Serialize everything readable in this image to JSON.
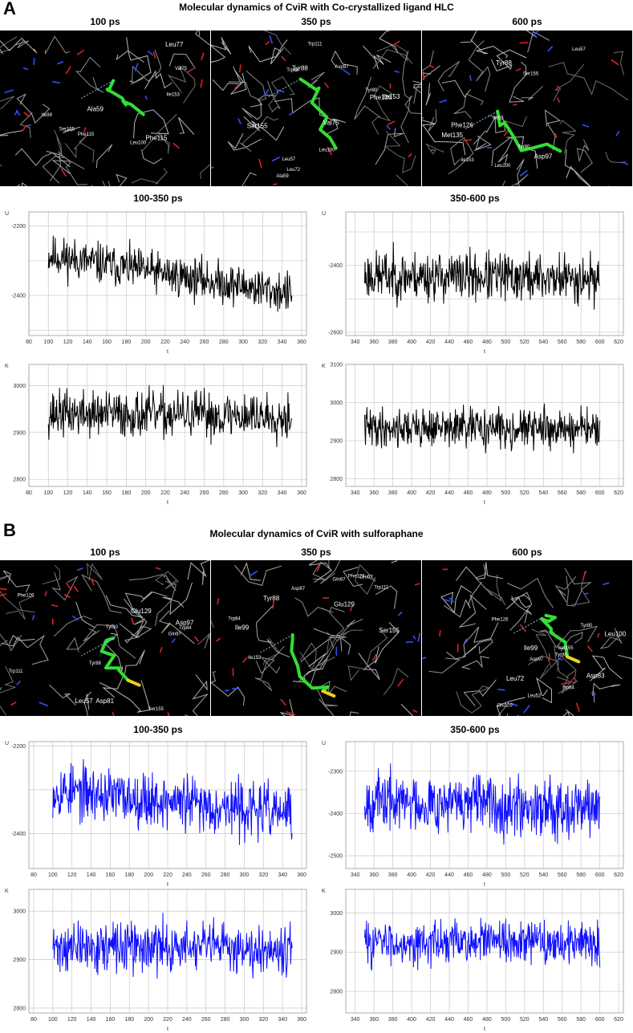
{
  "panels": [
    {
      "letter": "A",
      "title": "Molecular dynamics of CviR with Co-crystallized ligand HLC",
      "color": "#000000",
      "snapshots": [
        {
          "time": "100 ps",
          "residues": [
            "Leu77",
            "Leu100",
            "Val75",
            "Ala59",
            "Ile99",
            "Ile153",
            "Phe115",
            "Ser155",
            "Phe115"
          ]
        },
        {
          "time": "350 ps",
          "residues": [
            "Tyr88",
            "Trp84",
            "Tyr80",
            "Val75",
            "Leu72",
            "Leu57",
            "Phe126",
            "Asp97",
            "Ala59",
            "Ser155",
            "Leu100",
            "Trp111",
            "Ile153"
          ]
        },
        {
          "time": "600 ps",
          "residues": [
            "Tyr88",
            "Leu100",
            "Leu57",
            "Asp97",
            "Tyr80",
            "Ile153",
            "Phe126",
            "Ile99",
            "Ser155",
            "Met135"
          ]
        }
      ],
      "charts": [
        {
          "range": "100-350 ps",
          "axis_letter": "U",
          "xlabel": "t",
          "xlim": [
            80,
            365
          ],
          "ylim": [
            -2515,
            -2160
          ],
          "xticks": [
            80,
            100,
            120,
            140,
            160,
            180,
            200,
            220,
            240,
            260,
            280,
            300,
            320,
            340,
            360
          ],
          "yticks": [
            -2200,
            -2400
          ],
          "start": 100,
          "end": 350,
          "mean_start": -2285,
          "mean_end": -2395,
          "amp": 42,
          "seed": 11
        },
        {
          "range": "350-600 ps",
          "axis_letter": "U",
          "xlabel": "t",
          "xlim": [
            330,
            625
          ],
          "ylim": [
            -2610,
            -2240
          ],
          "xticks": [
            340,
            360,
            380,
            400,
            420,
            440,
            460,
            480,
            500,
            520,
            540,
            560,
            580,
            600,
            620
          ],
          "yticks": [
            -2400,
            -2600
          ],
          "start": 350,
          "end": 600,
          "mean_start": -2430,
          "mean_end": -2440,
          "amp": 52,
          "seed": 23
        },
        {
          "range": "",
          "axis_letter": "K",
          "xlabel": "t",
          "xlim": [
            80,
            365
          ],
          "ylim": [
            2785,
            3045
          ],
          "xticks": [
            80,
            100,
            120,
            140,
            160,
            180,
            200,
            220,
            240,
            260,
            280,
            300,
            320,
            340,
            360
          ],
          "yticks": [
            3000,
            2900,
            2800
          ],
          "start": 100,
          "end": 350,
          "mean_start": 2940,
          "mean_end": 2935,
          "amp": 35,
          "seed": 37
        },
        {
          "range": "",
          "axis_letter": "K",
          "xlabel": "t",
          "xlim": [
            330,
            625
          ],
          "ylim": [
            2780,
            3100
          ],
          "xticks": [
            340,
            360,
            380,
            400,
            420,
            440,
            460,
            480,
            500,
            520,
            540,
            560,
            580,
            600,
            620
          ],
          "yticks": [
            3100,
            3000,
            2900,
            2800
          ],
          "start": 350,
          "end": 600,
          "mean_start": 2935,
          "mean_end": 2930,
          "amp": 36,
          "seed": 41
        }
      ]
    },
    {
      "letter": "B",
      "title": "Molecular dynamics of CviR with sulforaphane",
      "color": "#1010ff",
      "snapshots": [
        {
          "time": "100 ps",
          "residues": [
            "Asp81",
            "Gln87",
            "Tyr80",
            "Glu129",
            "Trp84",
            "Tyr88",
            "Leu57",
            "Phe126",
            "Ser155",
            "Asp97",
            "Trp111"
          ]
        },
        {
          "time": "350 ps",
          "residues": [
            "Tyr88",
            "Gln87",
            "Asp97",
            "Glu129",
            "Phe126",
            "Trp84",
            "Ile99",
            "Leu57",
            "Ile153",
            "Ser155",
            "Trp111"
          ]
        },
        {
          "time": "600 ps",
          "residues": [
            "Leu72",
            "Tyr88",
            "Leu52",
            "Asp83",
            "Tyr80",
            "Trp84",
            "Leu100",
            "Ser155",
            "Asp97",
            "Ile99",
            "Glu129",
            "Phe126"
          ]
        }
      ],
      "charts": [
        {
          "range": "100-350 ps",
          "axis_letter": "U",
          "xlabel": "t",
          "xlim": [
            75,
            365
          ],
          "ylim": [
            -2480,
            -2190
          ],
          "xticks": [
            80,
            100,
            120,
            140,
            160,
            180,
            200,
            220,
            240,
            260,
            280,
            300,
            320,
            340,
            360
          ],
          "yticks": [
            -2200,
            -2400
          ],
          "start": 100,
          "end": 350,
          "mean_start": -2300,
          "mean_end": -2355,
          "amp": 44,
          "seed": 53
        },
        {
          "range": "350-600 ps",
          "axis_letter": "U",
          "xlabel": "t",
          "xlim": [
            330,
            625
          ],
          "ylim": [
            -2530,
            -2230
          ],
          "xticks": [
            340,
            360,
            380,
            400,
            420,
            440,
            460,
            480,
            500,
            520,
            540,
            560,
            580,
            600,
            620
          ],
          "yticks": [
            -2300,
            -2400,
            -2500
          ],
          "start": 350,
          "end": 600,
          "mean_start": -2370,
          "mean_end": -2385,
          "amp": 48,
          "seed": 67
        },
        {
          "range": "",
          "axis_letter": "K",
          "xlabel": "t",
          "xlim": [
            75,
            365
          ],
          "ylim": [
            2790,
            3045
          ],
          "xticks": [
            80,
            100,
            120,
            140,
            160,
            180,
            200,
            220,
            240,
            260,
            280,
            300,
            320,
            340,
            360
          ],
          "yticks": [
            3000,
            2900,
            2800
          ],
          "start": 100,
          "end": 350,
          "mean_start": 2925,
          "mean_end": 2925,
          "amp": 36,
          "seed": 71
        },
        {
          "range": "",
          "axis_letter": "K",
          "xlabel": "t",
          "xlim": [
            330,
            625
          ],
          "ylim": [
            2745,
            3060
          ],
          "xticks": [
            340,
            360,
            380,
            400,
            420,
            440,
            460,
            480,
            500,
            520,
            540,
            560,
            580,
            600,
            620
          ],
          "yticks": [
            3000,
            2900,
            2800
          ],
          "start": 350,
          "end": 600,
          "mean_start": 2925,
          "mean_end": 2925,
          "amp": 38,
          "seed": 83
        }
      ]
    }
  ],
  "chart_data": [
    {
      "type": "line",
      "panel": "A",
      "title": "100-350 ps",
      "xlabel": "t",
      "ylabel": "U",
      "xlim": [
        80,
        365
      ],
      "ylim": [
        -2515,
        -2160
      ],
      "series": [
        {
          "name": "",
          "x_range": [
            100,
            350
          ],
          "trend_y": [
            -2285,
            -2395
          ],
          "fluctuation": 42
        }
      ]
    },
    {
      "type": "line",
      "panel": "A",
      "title": "350-600 ps",
      "xlabel": "t",
      "ylabel": "U",
      "xlim": [
        330,
        625
      ],
      "ylim": [
        -2610,
        -2240
      ],
      "series": [
        {
          "name": "",
          "x_range": [
            350,
            600
          ],
          "trend_y": [
            -2430,
            -2440
          ],
          "fluctuation": 52
        }
      ]
    },
    {
      "type": "line",
      "panel": "A",
      "title": "",
      "xlabel": "t",
      "ylabel": "K",
      "xlim": [
        80,
        365
      ],
      "ylim": [
        2785,
        3045
      ],
      "series": [
        {
          "name": "",
          "x_range": [
            100,
            350
          ],
          "trend_y": [
            2940,
            2935
          ],
          "fluctuation": 35
        }
      ]
    },
    {
      "type": "line",
      "panel": "A",
      "title": "",
      "xlabel": "t",
      "ylabel": "K",
      "xlim": [
        330,
        625
      ],
      "ylim": [
        2780,
        3100
      ],
      "series": [
        {
          "name": "",
          "x_range": [
            350,
            600
          ],
          "trend_y": [
            2935,
            2930
          ],
          "fluctuation": 36
        }
      ]
    },
    {
      "type": "line",
      "panel": "B",
      "title": "100-350 ps",
      "xlabel": "t",
      "ylabel": "U",
      "xlim": [
        75,
        365
      ],
      "ylim": [
        -2480,
        -2190
      ],
      "series": [
        {
          "name": "",
          "x_range": [
            100,
            350
          ],
          "trend_y": [
            -2300,
            -2355
          ],
          "fluctuation": 44
        }
      ]
    },
    {
      "type": "line",
      "panel": "B",
      "title": "350-600 ps",
      "xlabel": "t",
      "ylabel": "U",
      "xlim": [
        330,
        625
      ],
      "ylim": [
        -2530,
        -2230
      ],
      "series": [
        {
          "name": "",
          "x_range": [
            350,
            600
          ],
          "trend_y": [
            -2370,
            -2385
          ],
          "fluctuation": 48
        }
      ]
    },
    {
      "type": "line",
      "panel": "B",
      "title": "",
      "xlabel": "t",
      "ylabel": "K",
      "xlim": [
        75,
        365
      ],
      "ylim": [
        2790,
        3045
      ],
      "series": [
        {
          "name": "",
          "x_range": [
            100,
            350
          ],
          "trend_y": [
            2925,
            2925
          ],
          "fluctuation": 36
        }
      ]
    },
    {
      "type": "line",
      "panel": "B",
      "title": "",
      "xlabel": "t",
      "ylabel": "K",
      "xlim": [
        330,
        625
      ],
      "ylim": [
        2745,
        3060
      ],
      "series": [
        {
          "name": "",
          "x_range": [
            350,
            600
          ],
          "trend_y": [
            2925,
            2925
          ],
          "fluctuation": 38
        }
      ]
    }
  ]
}
